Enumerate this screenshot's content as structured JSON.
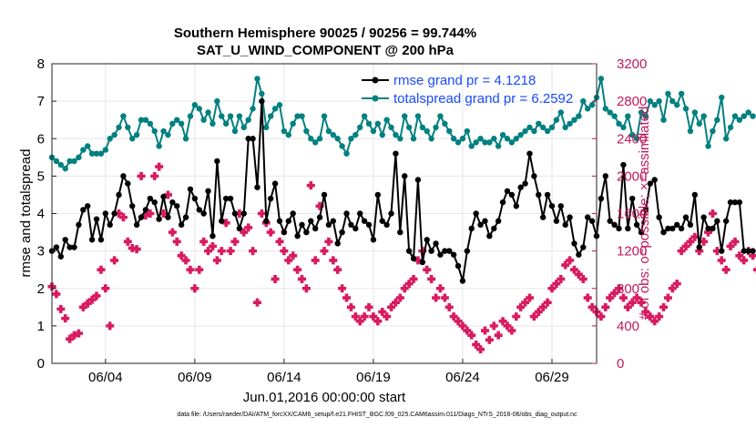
{
  "chart_data": {
    "type": "line",
    "title_line1": "Southern Hemisphere 90025 / 90256 = 99.744%",
    "title_line2": "SAT_U_WIND_COMPONENT @ 200 hPa",
    "xlabel": "Jun.01,2016 00:00:00 start",
    "ylabel_left": "rmse and totalspread",
    "ylabel_right": "# of obs: o=possible; ×=assimilated",
    "footer": "data file: /Users/raeder/DAI/ATM_forcXX/CAM6_setup/f.e21.FHIST_BGC.f09_025.CAM6assim.011/Diags_NTrS_2016-06/obs_diag_output.nc",
    "xlim": [
      1,
      31.5
    ],
    "ylim_left": [
      0,
      8
    ],
    "ylim_right": [
      0,
      3200
    ],
    "x_ticks": [
      4,
      9,
      14,
      19,
      24,
      29
    ],
    "x_tick_labels": [
      "06/04",
      "06/09",
      "06/14",
      "06/19",
      "06/24",
      "06/29"
    ],
    "y_ticks_left": [
      0,
      1,
      2,
      3,
      4,
      5,
      6,
      7,
      8
    ],
    "y_ticks_right": [
      0,
      400,
      800,
      1200,
      1600,
      2000,
      2400,
      2800,
      3200
    ],
    "grid": true,
    "legend_position": "top-right",
    "colors": {
      "rmse": "#000000",
      "totalspread": "#00807f",
      "obs": "#d81b60",
      "right_axis": "#c2185b",
      "legend_text": "#1a4bff"
    },
    "series": [
      {
        "name": "rmse grand pr = 4.1218",
        "axis": "left",
        "x_start": 1.0,
        "x_step": 0.25,
        "values": [
          3.0,
          3.1,
          2.85,
          3.3,
          3.1,
          3.1,
          3.7,
          4.1,
          4.2,
          3.3,
          3.85,
          3.3,
          4.0,
          3.7,
          4.0,
          4.5,
          5.0,
          4.8,
          4.2,
          3.7,
          3.9,
          4.1,
          4.4,
          4.3,
          3.85,
          4.45,
          3.9,
          4.3,
          4.2,
          3.7,
          3.9,
          4.65,
          4.4,
          4.1,
          4.0,
          4.6,
          3.4,
          5.4,
          3.8,
          4.4,
          4.4,
          4.0,
          3.6,
          4.0,
          6.0,
          6.0,
          4.7,
          7.0,
          3.8,
          4.4,
          4.8,
          3.8,
          3.5,
          3.8,
          4.0,
          3.4,
          3.7,
          3.5,
          3.8,
          3.6,
          3.9,
          4.5,
          3.7,
          3.8,
          3.2,
          3.5,
          4.0,
          3.7,
          3.6,
          4.0,
          3.8,
          3.7,
          3.3,
          4.5,
          3.8,
          3.7,
          4.0,
          5.6,
          3.5,
          5.0,
          3.0,
          2.8,
          4.9,
          2.7,
          3.3,
          3.0,
          3.2,
          2.9,
          3.0,
          3.0,
          2.9,
          2.6,
          2.2,
          3.0,
          3.6,
          4.0,
          3.7,
          3.8,
          3.4,
          3.6,
          3.8,
          4.3,
          4.6,
          4.5,
          4.2,
          4.7,
          4.8,
          5.6,
          5.0,
          4.5,
          3.9,
          4.5,
          4.2,
          3.8,
          4.2,
          3.7,
          3.9,
          3.2,
          2.9,
          3.1,
          3.9,
          3.8,
          3.4,
          4.4,
          5.0,
          3.8,
          3.7,
          3.6,
          5.3,
          3.6,
          4.4,
          3.7,
          3.5,
          4.1,
          4.8,
          4.9,
          3.9,
          3.5,
          3.6,
          3.6,
          3.7,
          3.6,
          3.9,
          3.7,
          4.5,
          3.1,
          3.9,
          3.6,
          3.6,
          3.8,
          3.0,
          3.8,
          4.3,
          4.3,
          4.3,
          3.0,
          3.0,
          3.0
        ]
      },
      {
        "name": "totalspread grand pr = 6.2592",
        "axis": "left",
        "x_start": 1.0,
        "x_step": 0.25,
        "values": [
          5.5,
          5.4,
          5.3,
          5.2,
          5.4,
          5.4,
          5.5,
          5.7,
          5.8,
          5.6,
          5.6,
          5.6,
          5.7,
          6.0,
          6.1,
          6.3,
          6.6,
          6.3,
          6.0,
          6.1,
          6.5,
          6.5,
          6.4,
          6.2,
          5.8,
          6.2,
          6.1,
          6.4,
          6.5,
          6.4,
          6.0,
          6.6,
          6.9,
          6.8,
          6.5,
          6.7,
          6.4,
          7.0,
          6.6,
          6.4,
          6.6,
          6.2,
          6.6,
          6.3,
          6.5,
          6.8,
          7.6,
          7.2,
          6.3,
          6.6,
          6.8,
          6.9,
          6.2,
          6.1,
          6.4,
          6.6,
          6.6,
          6.2,
          6.0,
          5.9,
          6.0,
          6.6,
          6.2,
          6.1,
          6.0,
          5.8,
          5.6,
          6.0,
          6.1,
          6.3,
          6.6,
          6.4,
          6.2,
          6.4,
          6.1,
          6.5,
          6.3,
          6.1,
          6.0,
          6.6,
          6.3,
          6.0,
          6.6,
          6.3,
          6.2,
          6.0,
          6.3,
          6.6,
          6.4,
          6.2,
          6.0,
          5.9,
          6.0,
          6.2,
          5.8,
          5.9,
          6.0,
          5.9,
          5.9,
          6.0,
          5.8,
          6.1,
          6.0,
          5.9,
          6.0,
          6.1,
          6.2,
          6.3,
          6.2,
          6.4,
          6.3,
          6.2,
          6.3,
          6.5,
          6.7,
          6.3,
          6.4,
          6.5,
          6.6,
          7.0,
          6.8,
          6.9,
          7.1,
          7.6,
          6.8,
          6.7,
          6.6,
          6.4,
          6.3,
          6.6,
          6.1,
          6.0,
          6.7,
          6.6,
          7.0,
          6.9,
          7.0,
          6.5,
          7.2,
          7.0,
          6.9,
          7.2,
          6.8,
          6.2,
          6.7,
          6.4,
          6.6,
          5.8,
          6.2,
          6.5,
          7.1,
          6.0,
          6.3,
          6.6,
          6.5,
          6.6,
          6.7,
          6.6
        ]
      },
      {
        "name": "obs assimilated",
        "axis": "right",
        "x_start": 1.0,
        "x_step": 0.25,
        "values": [
          820,
          740,
          580,
          480,
          260,
          300,
          320,
          600,
          640,
          680,
          720,
          1000,
          800,
          400,
          1100,
          1600,
          1560,
          1300,
          1230,
          1220,
          2000,
          1580,
          1600,
          2000,
          2100,
          1600,
          1800,
          1400,
          1300,
          1150,
          1100,
          1000,
          800,
          1000,
          1300,
          1200,
          1250,
          1100,
          1200,
          1500,
          1200,
          1300,
          1600,
          1400,
          1450,
          1200,
          650,
          1600,
          1500,
          1400,
          900,
          1300,
          1200,
          1100,
          1150,
          1000,
          900,
          800,
          1900,
          1100,
          1680,
          1200,
          1300,
          1100,
          1000,
          800,
          700,
          600,
          500,
          450,
          500,
          600,
          500,
          450,
          550,
          500,
          600,
          650,
          700,
          800,
          850,
          900,
          1100,
          1200,
          1000,
          900,
          700,
          800,
          700,
          600,
          500,
          450,
          400,
          350,
          300,
          200,
          150,
          350,
          250,
          400,
          300,
          450,
          400,
          350,
          500,
          600,
          650,
          700,
          500,
          550,
          600,
          650,
          800,
          850,
          900,
          1050,
          1100,
          1000,
          950,
          900,
          700,
          600,
          550,
          500,
          600,
          700,
          750,
          800,
          700,
          600,
          650,
          700,
          650,
          550,
          500,
          450,
          500,
          600,
          700,
          800,
          850,
          1200,
          1250,
          1300,
          1350,
          1200,
          1300,
          1400,
          1600,
          1200,
          1100,
          1000,
          1250,
          1300,
          1150,
          1100,
          1200,
          1150,
          1000
        ]
      }
    ]
  }
}
